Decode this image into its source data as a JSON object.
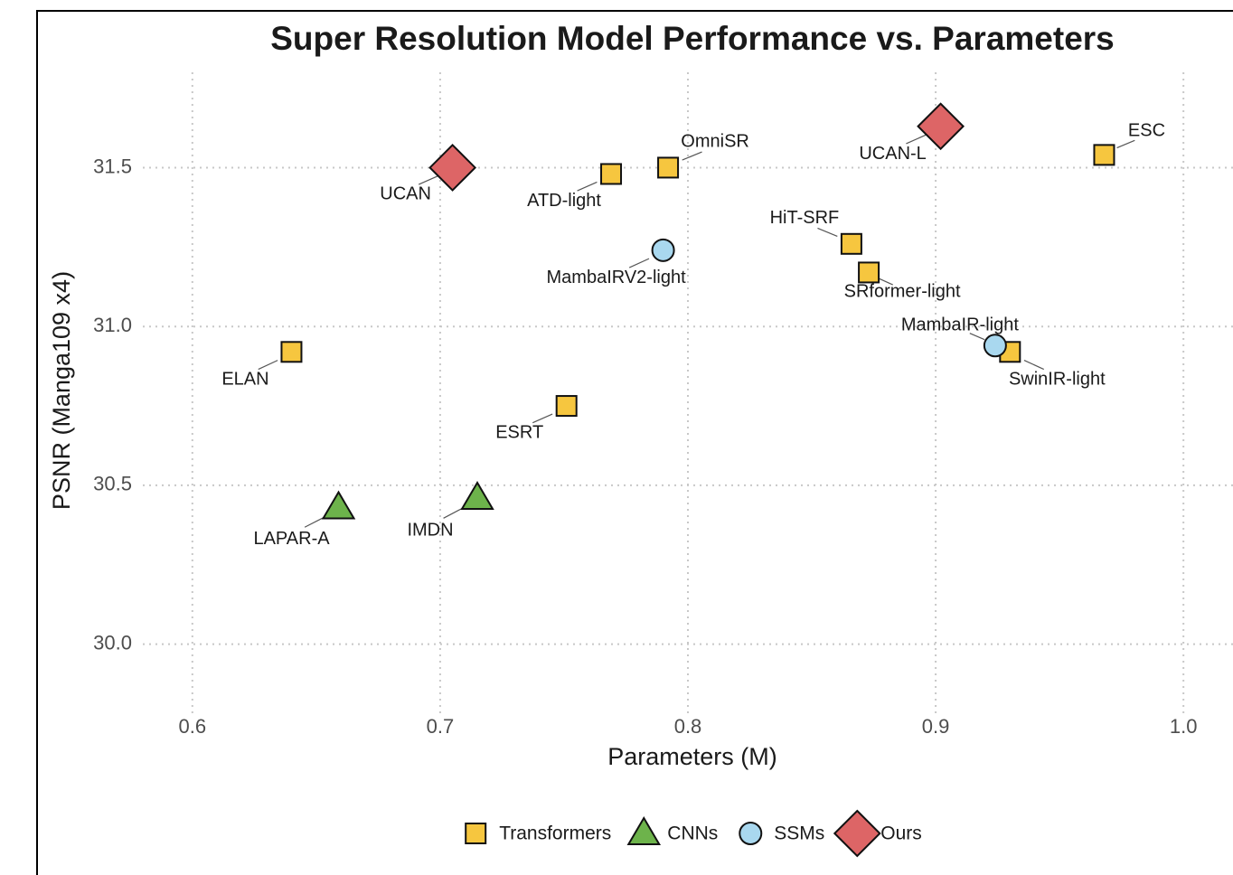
{
  "chart_data": {
    "type": "scatter",
    "title": "Super Resolution Model Performance vs. Parameters",
    "x_label": "Parameters (M)",
    "y_label": "PSNR (Manga109 x4)",
    "xlim": [
      0.58,
      1.02
    ],
    "ylim": [
      29.78,
      31.8
    ],
    "xticks": [
      0.6,
      0.7,
      0.8,
      0.9,
      {
        "value": 1,
        "label": "1.0"
      }
    ],
    "yticks": [
      {
        "value": 30,
        "label": "30.0"
      },
      30.5,
      {
        "value": 31,
        "label": "31.0"
      },
      31.5
    ],
    "grid": true,
    "legend": "bottom",
    "series": [
      {
        "name": "Transformers",
        "color": "#f6c63f",
        "marker": "square",
        "labels": [
          "ATD-light",
          "OmniSR",
          "ESC",
          "HiT-SRF",
          "SRformer-light",
          "SwinIR-light",
          "ELAN",
          "ESRT"
        ],
        "x": [
          0.769,
          0.792,
          0.968,
          0.866,
          0.873,
          0.93,
          0.64,
          0.751
        ],
        "values": [
          31.48,
          31.5,
          31.54,
          31.26,
          31.17,
          30.92,
          30.92,
          30.75
        ]
      },
      {
        "name": "CNNs",
        "color": "#6db34b",
        "marker": "triangle",
        "labels": [
          "LAPAR-A",
          "IMDN"
        ],
        "x": [
          0.659,
          0.715
        ],
        "values": [
          30.43,
          30.46
        ]
      },
      {
        "name": "SSMs",
        "color": "#a9d8ef",
        "marker": "circle",
        "labels": [
          "MambaIRV2-light",
          "MambaIR-light"
        ],
        "x": [
          0.79,
          0.924
        ],
        "values": [
          31.24,
          30.94
        ]
      },
      {
        "name": "Ours",
        "color": "#dd6566",
        "marker": "diamond",
        "labels": [
          "UCAN",
          "UCAN-L"
        ],
        "x": [
          0.705,
          0.902
        ],
        "values": [
          31.5,
          31.63
        ]
      }
    ]
  }
}
